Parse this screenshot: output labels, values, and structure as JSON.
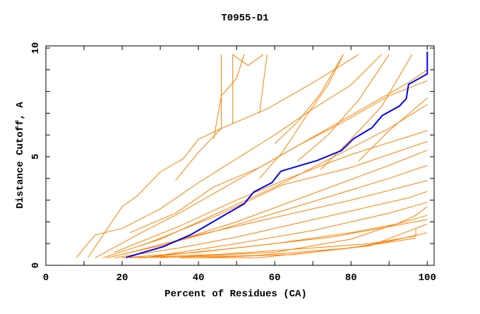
{
  "chart_data": {
    "type": "line",
    "title": "T0955-D1",
    "xlabel": "Percent of Residues (CA)",
    "ylabel": "Distance Cutoff, A",
    "xlim": [
      0,
      101.8
    ],
    "ylim": [
      0,
      10.1
    ],
    "x_ticks": [
      0,
      20,
      40,
      60,
      80,
      100
    ],
    "y_ticks": [
      0,
      5,
      10
    ],
    "grid": false,
    "colors": {
      "highlight": "#0000ff",
      "others": "#ff8000"
    },
    "highlight_series": [
      [
        21,
        0.36
      ],
      [
        30.8,
        0.86
      ],
      [
        37.8,
        1.39
      ],
      [
        42.1,
        1.83
      ],
      [
        47.4,
        2.37
      ],
      [
        52,
        2.83
      ],
      [
        54.5,
        3.37
      ],
      [
        59.3,
        3.81
      ],
      [
        61.6,
        4.33
      ],
      [
        71.2,
        4.83
      ],
      [
        77.5,
        5.28
      ],
      [
        80.7,
        5.83
      ],
      [
        85.5,
        6.33
      ],
      [
        88.2,
        6.89
      ],
      [
        92.7,
        7.33
      ],
      [
        94.5,
        7.67
      ],
      [
        95.1,
        8.33
      ],
      [
        100,
        8.81
      ],
      [
        100,
        9.83
      ]
    ],
    "other_series": [
      [
        [
          8,
          0.35
        ],
        [
          11,
          1.0
        ],
        [
          13,
          1.4
        ],
        [
          20,
          1.7
        ],
        [
          30,
          2.6
        ],
        [
          40,
          3.8
        ],
        [
          50,
          4.9
        ],
        [
          60,
          6.0
        ],
        [
          70,
          7.2
        ],
        [
          80,
          8.3
        ],
        [
          88,
          9.7
        ]
      ],
      [
        [
          11,
          0.35
        ],
        [
          20,
          2.7
        ],
        [
          24,
          3.2
        ],
        [
          30,
          4.3
        ],
        [
          36,
          4.9
        ],
        [
          40,
          5.8
        ],
        [
          46,
          6.3
        ],
        [
          46,
          9.7
        ]
      ],
      [
        [
          13,
          0.35
        ],
        [
          25,
          1.5
        ],
        [
          35,
          2.4
        ],
        [
          45,
          3.4
        ],
        [
          55,
          4.4
        ],
        [
          65,
          5.4
        ],
        [
          75,
          6.4
        ],
        [
          85,
          7.4
        ],
        [
          95,
          8.4
        ],
        [
          100,
          9.0
        ]
      ],
      [
        [
          15,
          0.35
        ],
        [
          30,
          1.2
        ],
        [
          40,
          2.0
        ],
        [
          50,
          2.8
        ],
        [
          60,
          3.6
        ],
        [
          70,
          4.5
        ],
        [
          80,
          5.4
        ],
        [
          90,
          6.3
        ],
        [
          100,
          7.4
        ]
      ],
      [
        [
          16,
          0.35
        ],
        [
          30,
          0.9
        ],
        [
          45,
          1.6
        ],
        [
          60,
          2.4
        ],
        [
          75,
          3.2
        ],
        [
          90,
          4.0
        ],
        [
          100,
          4.6
        ]
      ],
      [
        [
          18,
          0.35
        ],
        [
          35,
          0.8
        ],
        [
          50,
          1.3
        ],
        [
          65,
          1.9
        ],
        [
          80,
          2.5
        ],
        [
          95,
          3.1
        ],
        [
          100,
          3.4
        ]
      ],
      [
        [
          20,
          0.35
        ],
        [
          40,
          0.6
        ],
        [
          60,
          1.0
        ],
        [
          80,
          1.5
        ],
        [
          92,
          1.9
        ],
        [
          97,
          2.3
        ],
        [
          100,
          2.7
        ]
      ],
      [
        [
          22,
          0.35
        ],
        [
          45,
          0.5
        ],
        [
          70,
          0.8
        ],
        [
          85,
          1.0
        ],
        [
          97,
          1.35
        ],
        [
          97,
          1.7
        ]
      ],
      [
        [
          24,
          0.35
        ],
        [
          55,
          0.45
        ],
        [
          80,
          0.8
        ],
        [
          90,
          1.1
        ],
        [
          100,
          1.5
        ]
      ],
      [
        [
          30,
          0.35
        ],
        [
          60,
          0.6
        ],
        [
          80,
          1.2
        ],
        [
          90,
          1.8
        ],
        [
          100,
          2.3
        ]
      ],
      [
        [
          35,
          0.35
        ],
        [
          56,
          0.35
        ],
        [
          75,
          0.7
        ],
        [
          85,
          0.9
        ],
        [
          100,
          1.9
        ]
      ],
      [
        [
          20,
          0.5
        ],
        [
          40,
          1.4
        ],
        [
          60,
          2.2
        ],
        [
          80,
          3.0
        ],
        [
          100,
          3.9
        ]
      ],
      [
        [
          18,
          0.6
        ],
        [
          35,
          1.8
        ],
        [
          50,
          3.0
        ],
        [
          65,
          4.1
        ],
        [
          80,
          5.1
        ],
        [
          100,
          6.2
        ]
      ],
      [
        [
          22,
          1.5
        ],
        [
          34,
          2.4
        ],
        [
          44,
          3.6
        ],
        [
          56,
          4.5
        ],
        [
          66,
          5.5
        ],
        [
          78,
          6.6
        ],
        [
          90,
          7.8
        ],
        [
          100,
          8.5
        ]
      ],
      [
        [
          44,
          5.8
        ],
        [
          46,
          7.8
        ],
        [
          50,
          8.6
        ],
        [
          52,
          9.7
        ]
      ],
      [
        [
          49,
          6.5
        ],
        [
          49,
          9.7
        ],
        [
          53,
          9.2
        ],
        [
          57,
          9.7
        ]
      ],
      [
        [
          56,
          7.0
        ],
        [
          58,
          9.7
        ]
      ],
      [
        [
          60,
          5.6
        ],
        [
          66,
          6.6
        ],
        [
          72,
          7.9
        ],
        [
          78,
          9.7
        ]
      ],
      [
        [
          66,
          4.8
        ],
        [
          74,
          6.0
        ],
        [
          82,
          7.6
        ],
        [
          90,
          9.7
        ]
      ],
      [
        [
          72,
          4.4
        ],
        [
          80,
          5.8
        ],
        [
          88,
          7.3
        ],
        [
          96,
          9.7
        ]
      ],
      [
        [
          82,
          4.8
        ],
        [
          90,
          6.2
        ],
        [
          100,
          7.7
        ]
      ],
      [
        [
          56,
          4.0
        ],
        [
          62,
          5.2
        ],
        [
          68,
          6.8
        ],
        [
          74,
          8.3
        ],
        [
          78,
          9.7
        ]
      ],
      [
        [
          26,
          0.35
        ],
        [
          50,
          1.0
        ],
        [
          70,
          1.6
        ],
        [
          90,
          2.4
        ],
        [
          100,
          2.9
        ]
      ],
      [
        [
          28,
          0.4
        ],
        [
          50,
          0.8
        ],
        [
          75,
          1.3
        ],
        [
          100,
          2.1
        ]
      ],
      [
        [
          40,
          0.35
        ],
        [
          65,
          0.5
        ],
        [
          84,
          0.9
        ],
        [
          97,
          1.25
        ]
      ],
      [
        [
          32,
          1.0
        ],
        [
          50,
          2.0
        ],
        [
          70,
          3.3
        ],
        [
          90,
          4.6
        ],
        [
          100,
          5.3
        ]
      ],
      [
        [
          25,
          0.9
        ],
        [
          45,
          2.3
        ],
        [
          62,
          3.7
        ],
        [
          80,
          4.5
        ],
        [
          100,
          5.7
        ]
      ],
      [
        [
          34,
          3.9
        ],
        [
          40,
          5.2
        ],
        [
          46,
          6.3
        ],
        [
          58,
          7.2
        ],
        [
          70,
          8.4
        ],
        [
          82,
          9.7
        ]
      ]
    ]
  }
}
